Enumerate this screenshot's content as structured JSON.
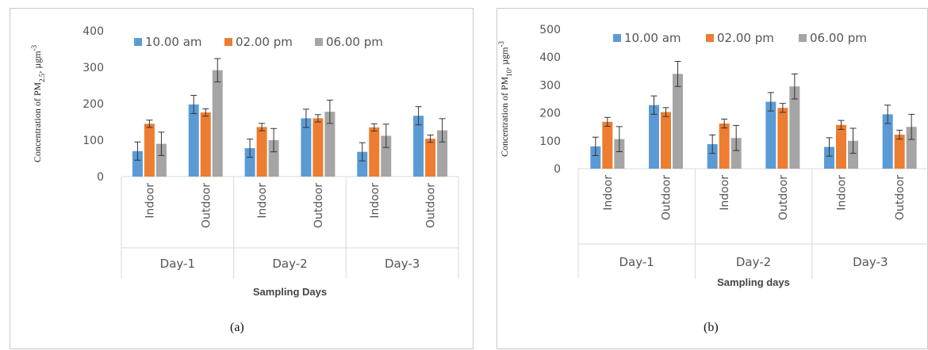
{
  "chart_data": [
    {
      "type": "bar",
      "panel_label": "(a)",
      "ylabel": "Concentration of  PM2.5, µgm-3",
      "ylabel_parts": {
        "pre": "Concentration of  PM",
        "sub": "2.5",
        "mid": ", µgm",
        "sup": "-3"
      },
      "xlabel": "Sampling Days",
      "ylim": [
        0,
        400
      ],
      "yticks": [
        0,
        100,
        200,
        300,
        400
      ],
      "grid": false,
      "legend_position": "top",
      "groups": [
        "Day-1",
        "Day-2",
        "Day-3"
      ],
      "categories": [
        "Indoor",
        "Outdoor",
        "Indoor",
        "Outdoor",
        "Indoor",
        "Outdoor"
      ],
      "series": [
        {
          "name": "10.00 am",
          "color": "#5b9bd5",
          "values": [
            70,
            198,
            78,
            160,
            68,
            167
          ],
          "errors": [
            25,
            25,
            25,
            25,
            25,
            25
          ]
        },
        {
          "name": "02.00 pm",
          "color": "#ed7d31",
          "values": [
            145,
            176,
            136,
            160,
            135,
            104
          ],
          "errors": [
            10,
            10,
            10,
            10,
            10,
            10
          ]
        },
        {
          "name": "06.00 pm",
          "color": "#a5a5a5",
          "values": [
            90,
            292,
            100,
            178,
            112,
            127
          ],
          "errors": [
            32,
            32,
            32,
            32,
            32,
            32
          ]
        }
      ]
    },
    {
      "type": "bar",
      "panel_label": "(b)",
      "ylabel": "Concentration of PM10, µgm-3",
      "ylabel_parts": {
        "pre": "Concentration of PM",
        "sub": "10",
        "mid": ", µgm",
        "sup": "-3"
      },
      "xlabel": "Sampling days",
      "ylim": [
        0,
        500
      ],
      "yticks": [
        0,
        100,
        200,
        300,
        400,
        500
      ],
      "grid": false,
      "legend_position": "top",
      "groups": [
        "Day-1",
        "Day-2",
        "Day-3"
      ],
      "categories": [
        "Indoor",
        "Outdoor",
        "Indoor",
        "Outdoor",
        "Indoor",
        "Outdoor"
      ],
      "series": [
        {
          "name": "10.00 am",
          "color": "#5b9bd5",
          "values": [
            80,
            228,
            88,
            240,
            78,
            195
          ],
          "errors": [
            33,
            33,
            33,
            33,
            33,
            33
          ]
        },
        {
          "name": "02.00 pm",
          "color": "#ed7d31",
          "values": [
            168,
            203,
            162,
            218,
            157,
            122
          ],
          "errors": [
            16,
            16,
            16,
            16,
            16,
            16
          ]
        },
        {
          "name": "06.00 pm",
          "color": "#a5a5a5",
          "values": [
            106,
            340,
            110,
            295,
            100,
            150
          ],
          "errors": [
            45,
            45,
            45,
            45,
            45,
            45
          ]
        }
      ]
    }
  ]
}
